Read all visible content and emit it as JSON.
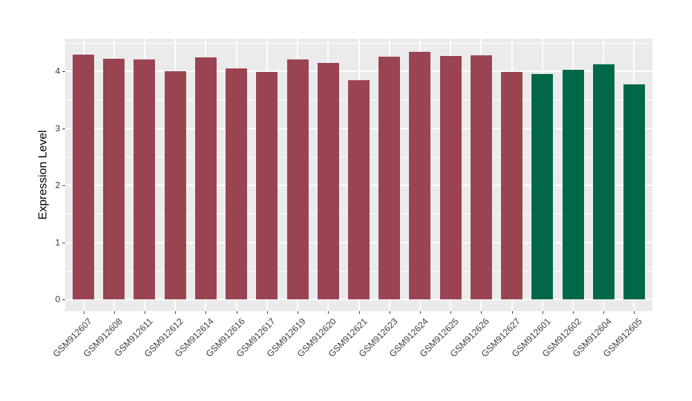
{
  "chart_data": {
    "type": "bar",
    "title": "",
    "xlabel": "",
    "ylabel": "Expression Level",
    "ylim": [
      0,
      4.6
    ],
    "yticks": [
      0,
      1,
      2,
      3,
      4
    ],
    "minor_yticks": [
      0.5,
      1.5,
      2.5,
      3.5,
      4.5
    ],
    "grid": "on",
    "legend_position": "none",
    "categories": [
      "GSM912607",
      "GSM912608",
      "GSM912611",
      "GSM912612",
      "GSM912614",
      "GSM912616",
      "GSM912617",
      "GSM912619",
      "GSM912620",
      "GSM912621",
      "GSM912623",
      "GSM912624",
      "GSM912625",
      "GSM912626",
      "GSM912627",
      "GSM912601",
      "GSM912602",
      "GSM912604",
      "GSM912605"
    ],
    "values": [
      4.29,
      4.22,
      4.2,
      4.0,
      4.24,
      4.05,
      3.99,
      4.2,
      4.15,
      3.84,
      4.25,
      4.34,
      4.27,
      4.28,
      3.99,
      3.95,
      4.02,
      4.12,
      3.77
    ],
    "groups": [
      "red",
      "red",
      "red",
      "red",
      "red",
      "red",
      "red",
      "red",
      "red",
      "red",
      "red",
      "red",
      "red",
      "red",
      "red",
      "green",
      "green",
      "green",
      "green"
    ],
    "group_colors": {
      "red": "#9A4351",
      "green": "#00674A"
    },
    "theme": {
      "panel_background": "#EBEBEB",
      "grid_color": "#FFFFFF",
      "axis_text_color": "#404040",
      "tick_color": "#333333",
      "plot_background": "#FFFFFF"
    }
  }
}
